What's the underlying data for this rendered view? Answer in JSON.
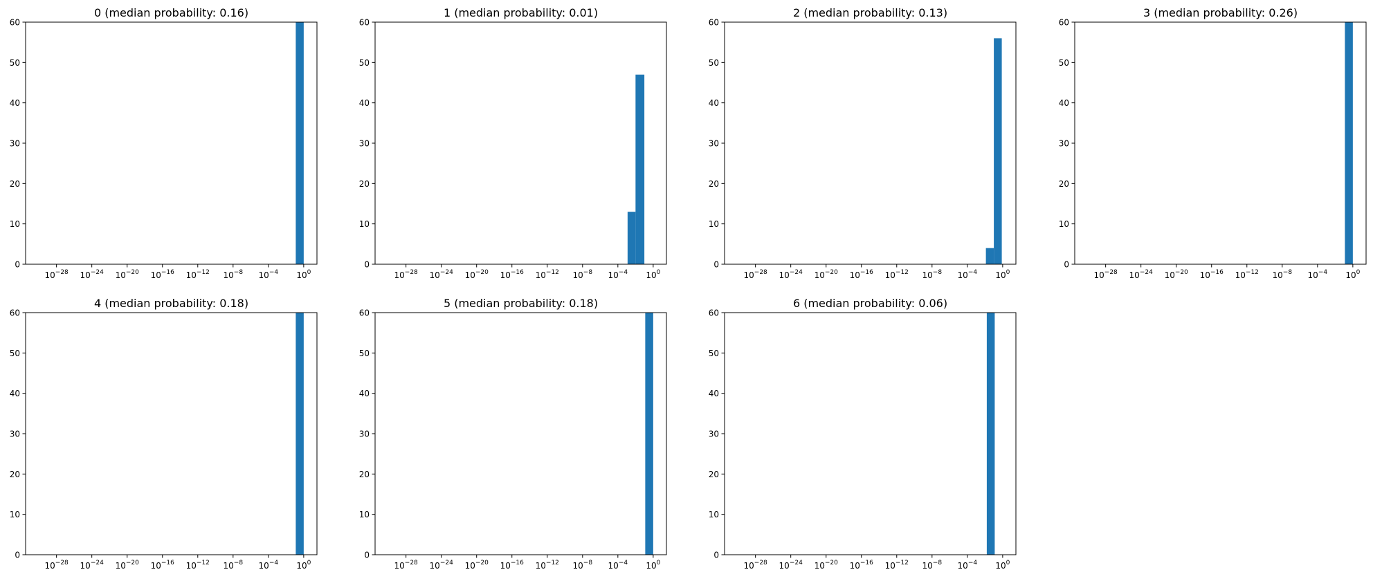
{
  "chart_data": [
    {
      "type": "bar",
      "title": "0 (median probability: 0.16)",
      "xscale": "log",
      "xlim_exponent": [
        -31.5,
        1.5
      ],
      "ylim": [
        0,
        60
      ],
      "yticks": [
        0,
        10,
        20,
        30,
        40,
        50,
        60
      ],
      "xtick_exponents": [
        -28,
        -24,
        -20,
        -16,
        -12,
        -8,
        -4,
        0
      ],
      "bins": [
        {
          "x0_exponent": -0.9,
          "x1_exponent": 0,
          "count": 60
        }
      ],
      "color": "#1f77b4"
    },
    {
      "type": "bar",
      "title": "1 (median probability: 0.01)",
      "xscale": "log",
      "xlim_exponent": [
        -31.5,
        1.5
      ],
      "ylim": [
        0,
        60
      ],
      "yticks": [
        0,
        10,
        20,
        30,
        40,
        50,
        60
      ],
      "xtick_exponents": [
        -28,
        -24,
        -20,
        -16,
        -12,
        -8,
        -4,
        0
      ],
      "bins": [
        {
          "x0_exponent": -2.9,
          "x1_exponent": -2.0,
          "count": 13
        },
        {
          "x0_exponent": -2.0,
          "x1_exponent": -1.0,
          "count": 47
        }
      ],
      "color": "#1f77b4"
    },
    {
      "type": "bar",
      "title": "2 (median probability: 0.13)",
      "xscale": "log",
      "xlim_exponent": [
        -31.5,
        1.5
      ],
      "ylim": [
        0,
        60
      ],
      "yticks": [
        0,
        10,
        20,
        30,
        40,
        50,
        60
      ],
      "xtick_exponents": [
        -28,
        -24,
        -20,
        -16,
        -12,
        -8,
        -4,
        0
      ],
      "bins": [
        {
          "x0_exponent": -1.9,
          "x1_exponent": -1.0,
          "count": 4
        },
        {
          "x0_exponent": -1.0,
          "x1_exponent": -0.1,
          "count": 56
        }
      ],
      "color": "#1f77b4"
    },
    {
      "type": "bar",
      "title": "3 (median probability: 0.26)",
      "xscale": "log",
      "xlim_exponent": [
        -31.5,
        1.5
      ],
      "ylim": [
        0,
        60
      ],
      "yticks": [
        0,
        10,
        20,
        30,
        40,
        50,
        60
      ],
      "xtick_exponents": [
        -28,
        -24,
        -20,
        -16,
        -12,
        -8,
        -4,
        0
      ],
      "bins": [
        {
          "x0_exponent": -0.9,
          "x1_exponent": 0,
          "count": 60
        }
      ],
      "color": "#1f77b4"
    },
    {
      "type": "bar",
      "title": "4 (median probability: 0.18)",
      "xscale": "log",
      "xlim_exponent": [
        -31.5,
        1.5
      ],
      "ylim": [
        0,
        60
      ],
      "yticks": [
        0,
        10,
        20,
        30,
        40,
        50,
        60
      ],
      "xtick_exponents": [
        -28,
        -24,
        -20,
        -16,
        -12,
        -8,
        -4,
        0
      ],
      "bins": [
        {
          "x0_exponent": -0.9,
          "x1_exponent": 0,
          "count": 60
        }
      ],
      "color": "#1f77b4"
    },
    {
      "type": "bar",
      "title": "5 (median probability: 0.18)",
      "xscale": "log",
      "xlim_exponent": [
        -31.5,
        1.5
      ],
      "ylim": [
        0,
        60
      ],
      "yticks": [
        0,
        10,
        20,
        30,
        40,
        50,
        60
      ],
      "xtick_exponents": [
        -28,
        -24,
        -20,
        -16,
        -12,
        -8,
        -4,
        0
      ],
      "bins": [
        {
          "x0_exponent": -0.9,
          "x1_exponent": 0,
          "count": 60
        }
      ],
      "color": "#1f77b4"
    },
    {
      "type": "bar",
      "title": "6 (median probability: 0.06)",
      "xscale": "log",
      "xlim_exponent": [
        -31.5,
        1.5
      ],
      "ylim": [
        0,
        60
      ],
      "yticks": [
        0,
        10,
        20,
        30,
        40,
        50,
        60
      ],
      "xtick_exponents": [
        -28,
        -24,
        -20,
        -16,
        -12,
        -8,
        -4,
        0
      ],
      "bins": [
        {
          "x0_exponent": -1.8,
          "x1_exponent": -0.9,
          "count": 60
        }
      ],
      "color": "#1f77b4"
    }
  ]
}
